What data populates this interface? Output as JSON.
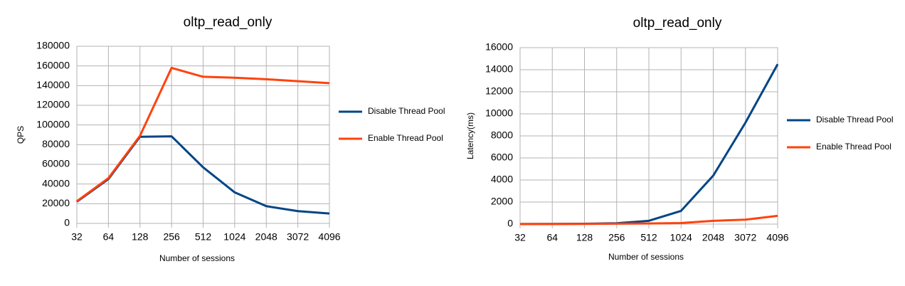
{
  "chart_data": [
    {
      "type": "line",
      "title": "oltp_read_only",
      "x_label": "Number of sessions",
      "y_label": "QPS",
      "categories": [
        "32",
        "64",
        "128",
        "256",
        "512",
        "1024",
        "2048",
        "3072",
        "4096"
      ],
      "series": [
        {
          "name": "Disable Thread Pool",
          "color": "#004586",
          "values": [
            22000,
            45000,
            88000,
            88500,
            57000,
            31500,
            17500,
            12500,
            10000
          ]
        },
        {
          "name": "Enable Thread Pool",
          "color": "#ff420e",
          "values": [
            22500,
            46000,
            89000,
            158000,
            149000,
            148000,
            146500,
            144500,
            142500
          ]
        }
      ],
      "ylim": [
        0,
        180000
      ],
      "yticks": [
        0,
        20000,
        40000,
        60000,
        80000,
        100000,
        120000,
        140000,
        160000,
        180000
      ],
      "grid": true
    },
    {
      "type": "line",
      "title": "oltp_read_only",
      "x_label": "Number of sessions",
      "y_label": "Latency(ms)",
      "categories": [
        "32",
        "64",
        "128",
        "256",
        "512",
        "1024",
        "2048",
        "3072",
        "4096"
      ],
      "series": [
        {
          "name": "Disable Thread Pool",
          "color": "#004586",
          "values": [
            10,
            15,
            30,
            80,
            300,
            1200,
            4400,
            9200,
            14500
          ]
        },
        {
          "name": "Enable Thread Pool",
          "color": "#ff420e",
          "values": [
            5,
            10,
            20,
            40,
            60,
            100,
            300,
            400,
            750
          ]
        }
      ],
      "ylim": [
        0,
        16000
      ],
      "yticks": [
        0,
        2000,
        4000,
        6000,
        8000,
        10000,
        12000,
        14000,
        16000
      ],
      "grid": true
    }
  ]
}
